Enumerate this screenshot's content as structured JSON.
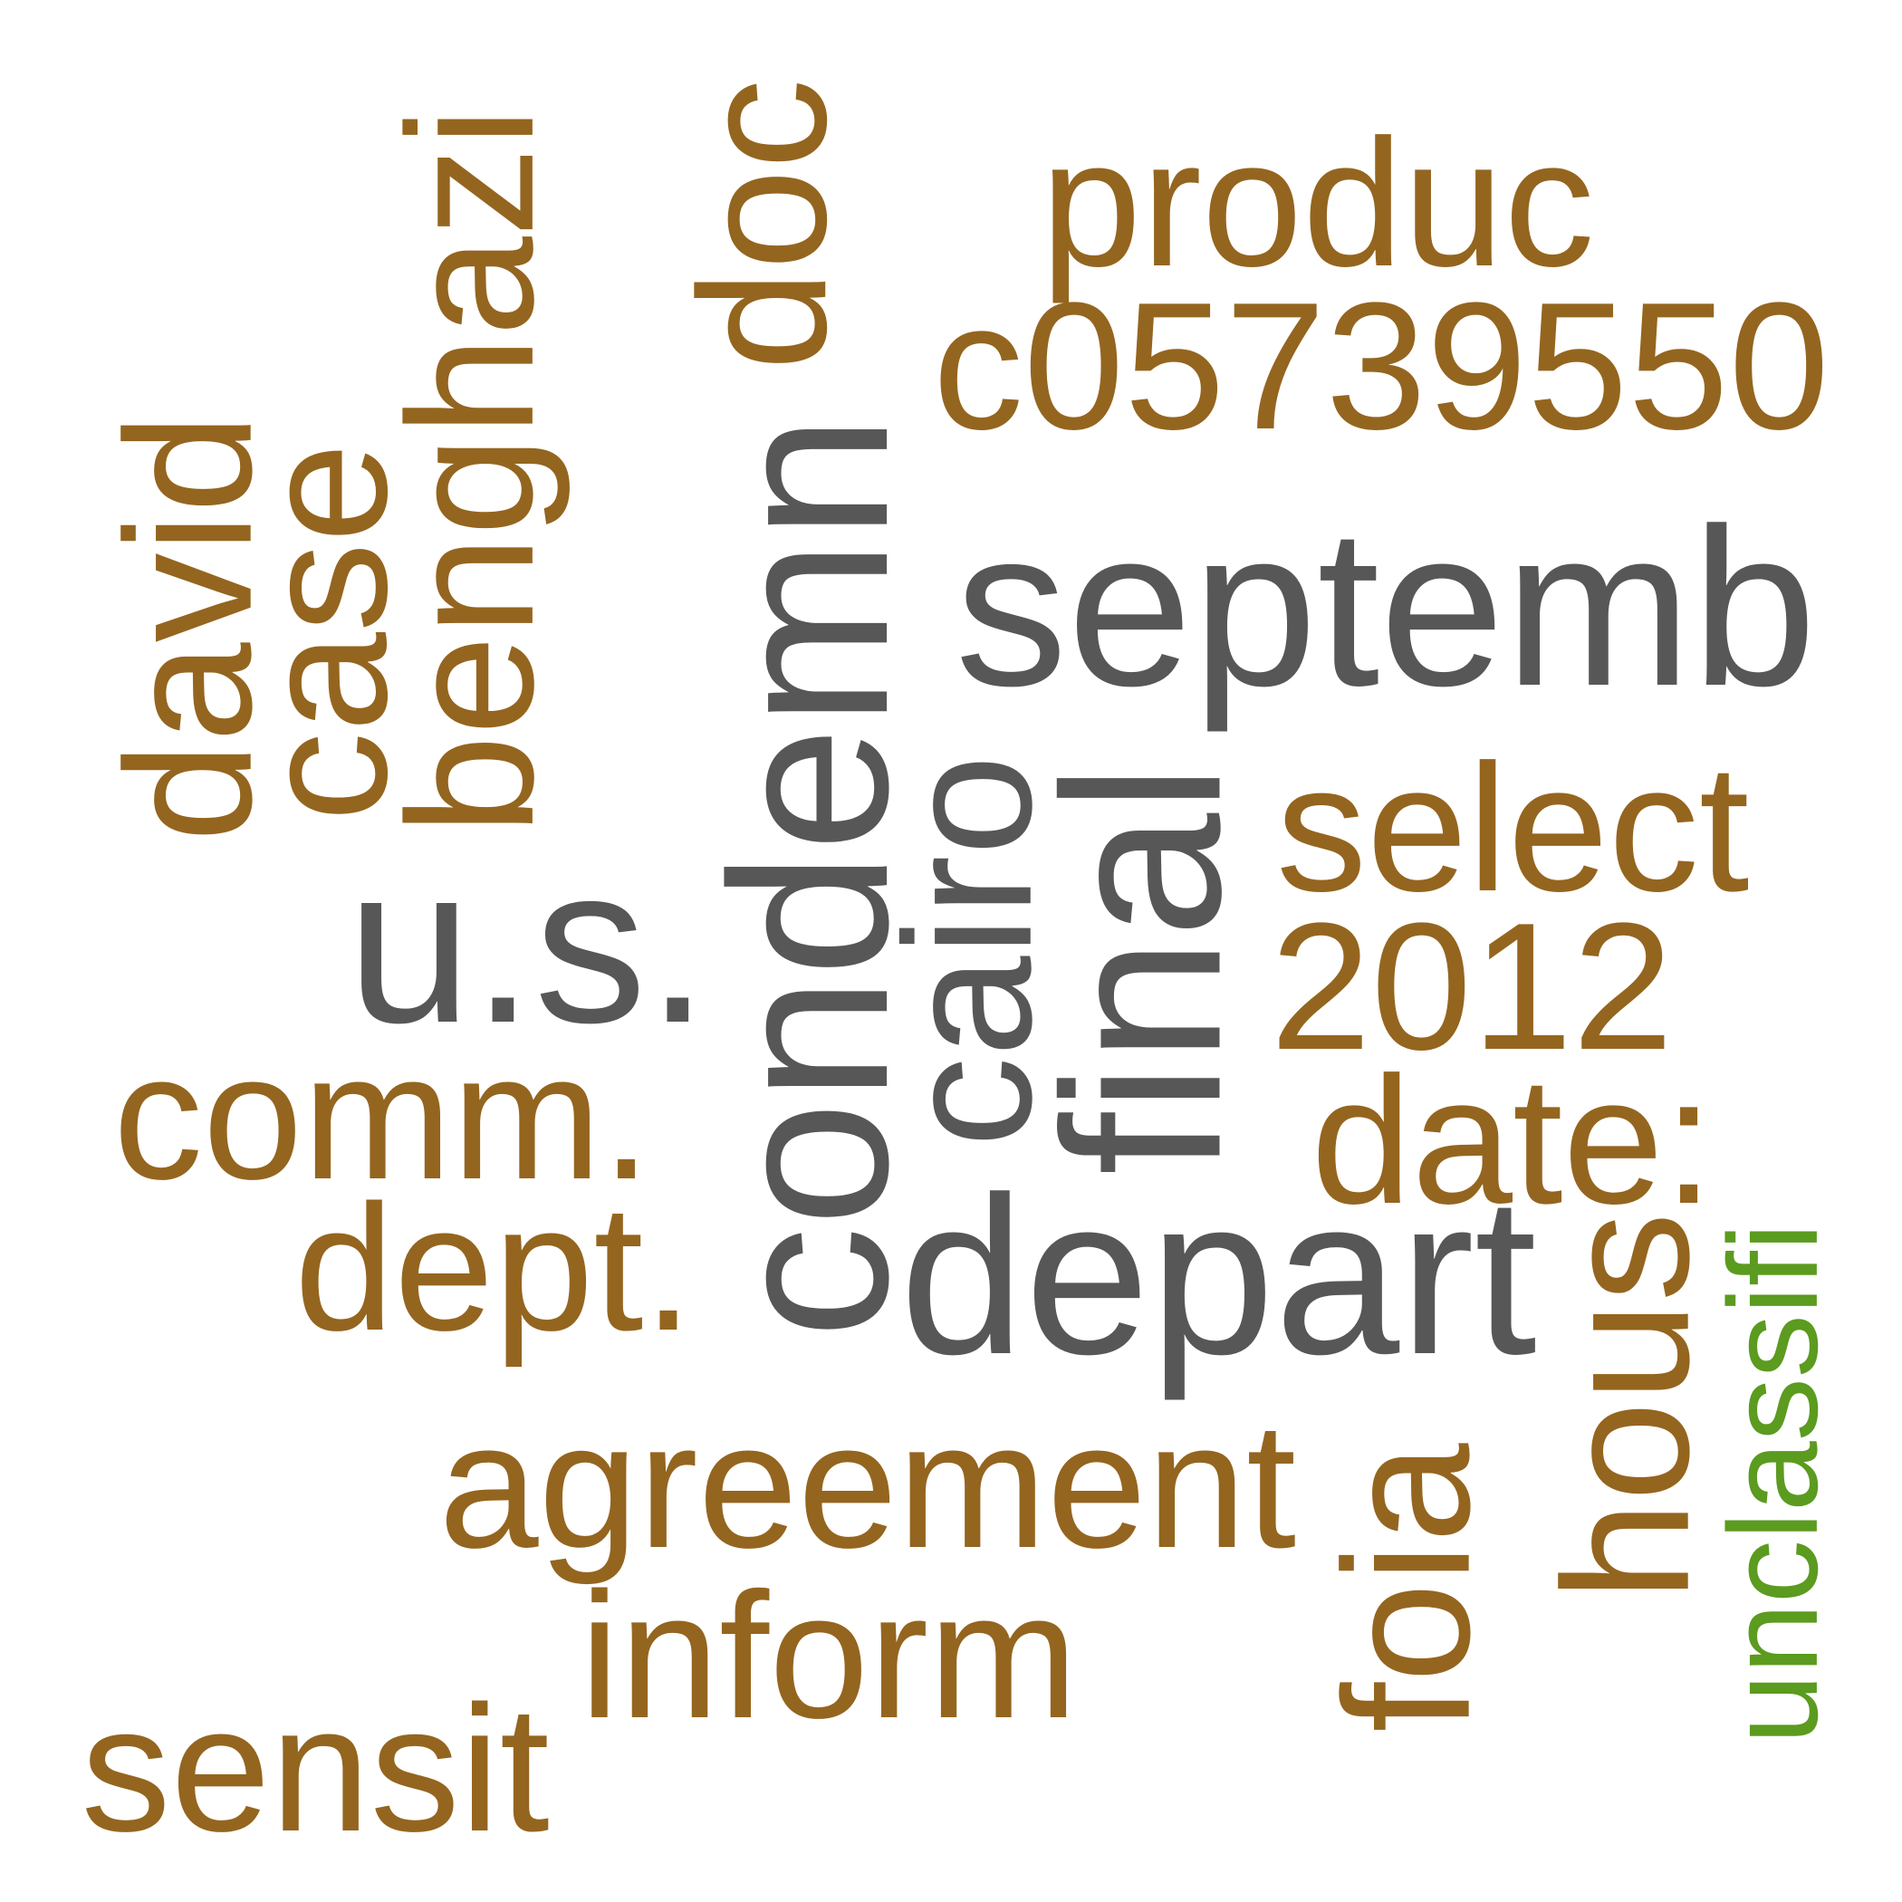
{
  "palette": {
    "brown": "#94651f",
    "gray": "#575757",
    "green": "#5b9b1f"
  },
  "words": [
    {
      "text": "produc",
      "color": "brown"
    },
    {
      "text": "c05739550",
      "color": "brown"
    },
    {
      "text": "septemb",
      "color": "gray"
    },
    {
      "text": "doc",
      "color": "brown"
    },
    {
      "text": "benghazi",
      "color": "brown"
    },
    {
      "text": "case",
      "color": "brown"
    },
    {
      "text": "david",
      "color": "brown"
    },
    {
      "text": "condemn",
      "color": "gray"
    },
    {
      "text": "cairo",
      "color": "gray"
    },
    {
      "text": "final",
      "color": "gray"
    },
    {
      "text": "select",
      "color": "brown"
    },
    {
      "text": "2012",
      "color": "brown"
    },
    {
      "text": "date:",
      "color": "brown"
    },
    {
      "text": "u.s.",
      "color": "gray"
    },
    {
      "text": "comm.",
      "color": "brown"
    },
    {
      "text": "dept.",
      "color": "brown"
    },
    {
      "text": "depart",
      "color": "gray"
    },
    {
      "text": "agreement",
      "color": "brown"
    },
    {
      "text": "inform",
      "color": "brown"
    },
    {
      "text": "sensit",
      "color": "brown"
    },
    {
      "text": "foia",
      "color": "brown"
    },
    {
      "text": "hous",
      "color": "brown"
    },
    {
      "text": "unclassifi",
      "color": "green"
    }
  ]
}
